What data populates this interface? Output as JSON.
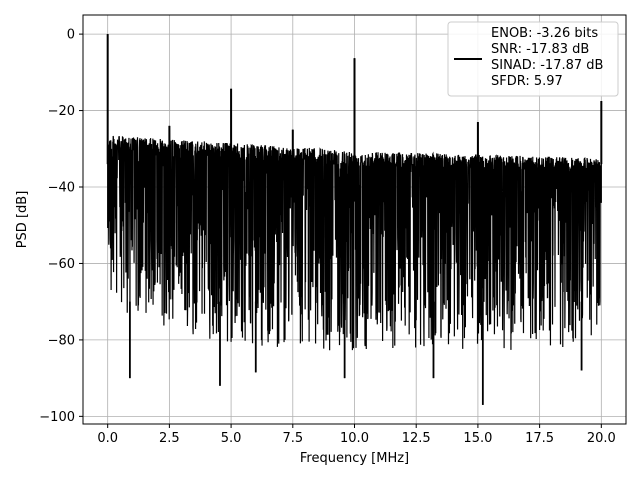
{
  "chart_data": {
    "type": "line",
    "title": "",
    "xlabel": "Frequency [MHz]",
    "ylabel": "PSD [dB]",
    "xlim": [
      -1.0,
      21.0
    ],
    "ylim": [
      -102.0,
      5.0
    ],
    "xticks": [
      0.0,
      2.5,
      5.0,
      7.5,
      10.0,
      12.5,
      15.0,
      17.5,
      20.0
    ],
    "xtick_labels": [
      "0.0",
      "2.5",
      "5.0",
      "7.5",
      "10.0",
      "12.5",
      "15.0",
      "17.5",
      "20.0"
    ],
    "yticks": [
      0,
      -20,
      -40,
      -60,
      -80,
      -100
    ],
    "ytick_labels": [
      "0",
      "−20",
      "−40",
      "−60",
      "−80",
      "−100"
    ],
    "grid": true,
    "legend_position": "top-right",
    "legend": {
      "lines": [
        "ENOB: -3.26 bits",
        "SNR: -17.83 dB",
        "SINAD: -17.87 dB",
        "SFDR: 5.97"
      ]
    },
    "series": [
      {
        "color": "#000000",
        "noise_envelope": {
          "upper": [
            [
              0.0,
              -25
            ],
            [
              0.1,
              -26.5
            ],
            [
              2.5,
              -27.5
            ],
            [
              5.0,
              -28.5
            ],
            [
              7.5,
              -29.5
            ],
            [
              10.0,
              -30.5
            ],
            [
              12.5,
              -31
            ],
            [
              15.0,
              -31.5
            ],
            [
              17.5,
              -32
            ],
            [
              20.0,
              -32.5
            ]
          ],
          "lower_typical": [
            [
              0.0,
              -62
            ],
            [
              5.0,
              -72
            ],
            [
              10.0,
              -73
            ],
            [
              15.0,
              -73
            ],
            [
              20.0,
              -72
            ]
          ]
        },
        "spikes": [
          {
            "x": 0.0,
            "y": 0.0
          },
          {
            "x": 2.5,
            "y": -24
          },
          {
            "x": 5.0,
            "y": -14.3
          },
          {
            "x": 7.5,
            "y": -25
          },
          {
            "x": 10.0,
            "y": -6.3
          },
          {
            "x": 15.0,
            "y": -23
          },
          {
            "x": 20.0,
            "y": -17.5
          }
        ],
        "deep_dips": [
          {
            "x": 0.9,
            "y": -90
          },
          {
            "x": 4.55,
            "y": -92
          },
          {
            "x": 6.0,
            "y": -88.5
          },
          {
            "x": 9.6,
            "y": -90
          },
          {
            "x": 13.2,
            "y": -90
          },
          {
            "x": 15.2,
            "y": -97
          },
          {
            "x": 19.2,
            "y": -88
          }
        ]
      }
    ]
  }
}
